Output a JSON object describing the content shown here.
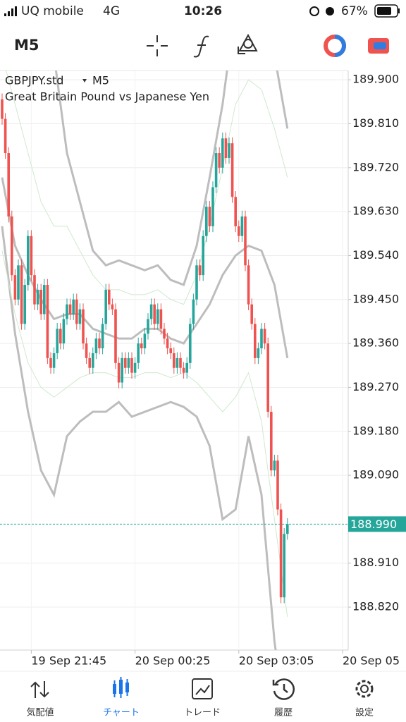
{
  "status_bar": {
    "carrier": "UQ mobile",
    "network": "4G",
    "time": "10:26",
    "battery": "67%"
  },
  "toolbar": {
    "timeframe": "M5"
  },
  "chart_data": {
    "type": "candlestick",
    "symbol": "GBPJPY.std",
    "timeframe": "M5",
    "subtitle": "Great Britain Pound vs Japanese Yen",
    "up_color": "#26a69a",
    "down_color": "#ef5350",
    "open": [
      189.86,
      189.82,
      189.75,
      189.62,
      189.5,
      189.45,
      189.52,
      189.4,
      189.48,
      189.58,
      189.5,
      189.44,
      189.47,
      189.42,
      189.48,
      189.33,
      189.31,
      189.34,
      189.39,
      189.36,
      189.41,
      189.44,
      189.42,
      189.45,
      189.4,
      189.43,
      189.36,
      189.33,
      189.31,
      189.34,
      189.37,
      189.35,
      189.4,
      189.47,
      189.44,
      189.43,
      189.32,
      189.28,
      189.33,
      189.31,
      189.33,
      189.3,
      189.32,
      189.36,
      189.35,
      189.38,
      189.41,
      189.44,
      189.4,
      189.43,
      189.39,
      189.37,
      189.35,
      189.34,
      189.31,
      189.33,
      189.31,
      189.3,
      189.32,
      189.4,
      189.45,
      189.52,
      189.5,
      189.58,
      189.64,
      189.6,
      189.68,
      189.75,
      189.72,
      189.78,
      189.74,
      189.77,
      189.66,
      189.6,
      189.58,
      189.62,
      189.52,
      189.44,
      189.4,
      189.33,
      189.35,
      189.39,
      189.36,
      189.22,
      189.1,
      189.12,
      189.02,
      188.84,
      188.97
    ],
    "high": [
      189.872,
      189.832,
      189.762,
      189.632,
      189.512,
      189.532,
      189.532,
      189.492,
      189.592,
      189.592,
      189.512,
      189.482,
      189.482,
      189.492,
      189.492,
      189.342,
      189.352,
      189.402,
      189.402,
      189.422,
      189.452,
      189.452,
      189.462,
      189.462,
      189.442,
      189.442,
      189.372,
      189.342,
      189.352,
      189.382,
      189.382,
      189.412,
      189.482,
      189.482,
      189.452,
      189.442,
      189.332,
      189.342,
      189.342,
      189.342,
      189.342,
      189.332,
      189.372,
      189.372,
      189.392,
      189.422,
      189.452,
      189.452,
      189.442,
      189.442,
      189.402,
      189.382,
      189.362,
      189.352,
      189.342,
      189.342,
      189.322,
      189.332,
      189.412,
      189.462,
      189.532,
      189.532,
      189.592,
      189.652,
      189.652,
      189.692,
      189.762,
      189.762,
      189.792,
      189.792,
      189.782,
      189.782,
      189.672,
      189.612,
      189.632,
      189.632,
      189.532,
      189.452,
      189.412,
      189.362,
      189.402,
      189.402,
      189.372,
      189.232,
      189.132,
      189.132,
      189.032,
      188.982,
      189.002
    ],
    "low": [
      189.808,
      189.738,
      189.608,
      189.488,
      189.438,
      189.438,
      189.388,
      189.388,
      189.468,
      189.488,
      189.428,
      189.428,
      189.408,
      189.408,
      189.318,
      189.298,
      189.298,
      189.328,
      189.348,
      189.348,
      189.398,
      189.408,
      189.408,
      189.388,
      189.388,
      189.348,
      189.318,
      189.298,
      189.298,
      189.328,
      189.338,
      189.338,
      189.388,
      189.428,
      189.418,
      189.308,
      189.268,
      189.268,
      189.298,
      189.298,
      189.288,
      189.288,
      189.308,
      189.338,
      189.338,
      189.368,
      189.398,
      189.388,
      189.388,
      189.378,
      189.358,
      189.338,
      189.328,
      189.298,
      189.298,
      189.298,
      189.288,
      189.288,
      189.308,
      189.388,
      189.438,
      189.488,
      189.488,
      189.568,
      189.588,
      189.588,
      189.668,
      189.708,
      189.708,
      189.728,
      189.728,
      189.648,
      189.588,
      189.568,
      189.568,
      189.508,
      189.428,
      189.388,
      189.318,
      189.318,
      189.338,
      189.348,
      189.208,
      189.088,
      189.088,
      189.008,
      188.828,
      188.828,
      188.958
    ],
    "close": [
      189.82,
      189.75,
      189.62,
      189.5,
      189.45,
      189.52,
      189.4,
      189.48,
      189.58,
      189.5,
      189.44,
      189.47,
      189.42,
      189.48,
      189.33,
      189.31,
      189.34,
      189.39,
      189.36,
      189.41,
      189.44,
      189.42,
      189.45,
      189.4,
      189.43,
      189.36,
      189.33,
      189.31,
      189.34,
      189.37,
      189.35,
      189.4,
      189.47,
      189.44,
      189.43,
      189.32,
      189.28,
      189.33,
      189.31,
      189.33,
      189.3,
      189.32,
      189.36,
      189.35,
      189.38,
      189.41,
      189.44,
      189.4,
      189.43,
      189.39,
      189.37,
      189.35,
      189.34,
      189.31,
      189.33,
      189.31,
      189.3,
      189.32,
      189.4,
      189.45,
      189.52,
      189.5,
      189.58,
      189.64,
      189.6,
      189.68,
      189.75,
      189.72,
      189.78,
      189.74,
      189.77,
      189.66,
      189.6,
      189.58,
      189.62,
      189.52,
      189.44,
      189.4,
      189.33,
      189.35,
      189.39,
      189.36,
      189.22,
      189.1,
      189.12,
      189.02,
      188.84,
      188.97,
      188.99
    ],
    "band_x": [
      0,
      4,
      8,
      12,
      16,
      20,
      24,
      28,
      32,
      36,
      40,
      44,
      48,
      52,
      56,
      60,
      64,
      68,
      72,
      76,
      80,
      84,
      88
    ],
    "bands": [
      {
        "color": "#bdbdbd",
        "width": 3,
        "values": [
          190.3,
          190.2,
          190.1,
          190.0,
          189.95,
          189.75,
          189.65,
          189.55,
          189.52,
          189.53,
          189.52,
          189.51,
          189.52,
          189.49,
          189.48,
          189.56,
          189.7,
          189.85,
          190.05,
          190.1,
          190.05,
          189.95,
          189.8
        ]
      },
      {
        "color": "#bdbdbd",
        "width": 3,
        "values": [
          189.7,
          189.56,
          189.5,
          189.45,
          189.41,
          189.42,
          189.42,
          189.39,
          189.38,
          189.37,
          189.37,
          189.39,
          189.39,
          189.37,
          189.36,
          189.4,
          189.44,
          189.5,
          189.54,
          189.56,
          189.55,
          189.48,
          189.33
        ]
      },
      {
        "color": "#bdbdbd",
        "width": 3,
        "values": [
          189.6,
          189.38,
          189.22,
          189.1,
          189.05,
          189.17,
          189.2,
          189.22,
          189.22,
          189.24,
          189.21,
          189.22,
          189.23,
          189.24,
          189.23,
          189.21,
          189.15,
          189.0,
          189.02,
          189.17,
          189.05,
          188.75,
          188.55
        ]
      },
      {
        "color": "#cfe8cf",
        "width": 1,
        "values": [
          189.95,
          189.85,
          189.75,
          189.65,
          189.6,
          189.6,
          189.55,
          189.5,
          189.47,
          189.47,
          189.46,
          189.46,
          189.47,
          189.45,
          189.44,
          189.5,
          189.6,
          189.72,
          189.85,
          189.9,
          189.88,
          189.8,
          189.7
        ]
      },
      {
        "color": "#cfe8cf",
        "width": 1,
        "values": [
          189.55,
          189.42,
          189.32,
          189.27,
          189.25,
          189.27,
          189.29,
          189.3,
          189.3,
          189.29,
          189.29,
          189.3,
          189.3,
          189.29,
          189.3,
          189.28,
          189.25,
          189.22,
          189.25,
          189.3,
          189.2,
          189.0,
          188.8
        ]
      }
    ],
    "current_price": 188.99,
    "current_price_label": "188.990",
    "current_color": "#26a69a",
    "xlim": [
      -0.65,
      106.74
    ],
    "ylim": [
      188.732,
      189.919
    ],
    "grid": true,
    "xticks": [
      {
        "value": 9,
        "label": "19 Sep 21:45"
      },
      {
        "value": 41,
        "label": "20 Sep 00:25"
      },
      {
        "value": 73,
        "label": "20 Sep 03:05"
      },
      {
        "value": 105,
        "label": "20 Sep 05"
      }
    ],
    "yticks": [
      {
        "value": 189.9,
        "label": "189.900"
      },
      {
        "value": 189.81,
        "label": "189.810"
      },
      {
        "value": 189.72,
        "label": "189.720"
      },
      {
        "value": 189.63,
        "label": "189.630"
      },
      {
        "value": 189.54,
        "label": "189.540"
      },
      {
        "value": 189.45,
        "label": "189.450"
      },
      {
        "value": 189.36,
        "label": "189.360"
      },
      {
        "value": 189.27,
        "label": "189.270"
      },
      {
        "value": 189.18,
        "label": "189.180"
      },
      {
        "value": 189.09,
        "label": "189.090"
      },
      {
        "value": 188.91,
        "label": "188.910"
      },
      {
        "value": 188.82,
        "label": "188.820"
      }
    ]
  },
  "nav": {
    "active": 1,
    "items": [
      "気配値",
      "チャート",
      "トレード",
      "履歴",
      "設定"
    ]
  }
}
